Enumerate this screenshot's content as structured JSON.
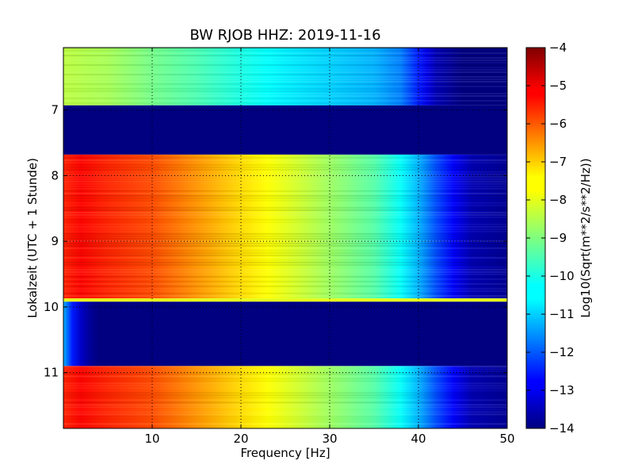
{
  "chart_data": {
    "type": "heatmap",
    "title": "BW RJOB HHZ: 2019-11-16",
    "xlabel": "Frequency [Hz]",
    "ylabel": "Lokalzeit (UTC + 1 Stunde)",
    "xlim": [
      0,
      50
    ],
    "ylim": [
      11.85,
      6.05
    ],
    "x_ticks": [
      10,
      20,
      30,
      40,
      50
    ],
    "y_ticks": [
      7,
      8,
      9,
      10,
      11
    ],
    "y_axis_inverted": true,
    "grid": true,
    "colormap": "jet",
    "colorbar": {
      "label": "Log10(Sqrt(m**2/s**2/Hz))",
      "range": [
        -14,
        -4
      ],
      "ticks": [
        -4,
        -5,
        -6,
        -7,
        -8,
        -9,
        -10,
        -11,
        -12,
        -13,
        -14
      ]
    },
    "time_segments": [
      {
        "start": 6.05,
        "end": 6.93,
        "state": "data",
        "profile": [
          [
            0,
            -8.4
          ],
          [
            5,
            -8.6
          ],
          [
            10,
            -9.1
          ],
          [
            15,
            -9.5
          ],
          [
            20,
            -10.0
          ],
          [
            25,
            -10.4
          ],
          [
            30,
            -10.7
          ],
          [
            35,
            -11.0
          ],
          [
            38,
            -11.5
          ],
          [
            40,
            -12.5
          ],
          [
            42,
            -13.5
          ],
          [
            45,
            -14
          ],
          [
            50,
            -14
          ]
        ]
      },
      {
        "start": 6.93,
        "end": 7.68,
        "state": "no_data",
        "value": -14
      },
      {
        "start": 7.68,
        "end": 9.87,
        "state": "data",
        "profile": [
          [
            0,
            -5.6
          ],
          [
            2,
            -5.3
          ],
          [
            5,
            -5.6
          ],
          [
            10,
            -6.0
          ],
          [
            15,
            -6.7
          ],
          [
            20,
            -7.4
          ],
          [
            25,
            -8.0
          ],
          [
            30,
            -8.7
          ],
          [
            35,
            -9.4
          ],
          [
            38,
            -10.2
          ],
          [
            40,
            -11.0
          ],
          [
            42,
            -12.0
          ],
          [
            44,
            -12.8
          ],
          [
            46,
            -13.5
          ],
          [
            50,
            -13.8
          ]
        ]
      },
      {
        "start": 9.87,
        "end": 9.92,
        "state": "transition_line",
        "value": -8.0
      },
      {
        "start": 9.92,
        "end": 10.9,
        "state": "low",
        "profile": [
          [
            0,
            -11.0
          ],
          [
            1,
            -12.5
          ],
          [
            2,
            -13.3
          ],
          [
            3.5,
            -14
          ],
          [
            50,
            -14
          ]
        ]
      },
      {
        "start": 10.9,
        "end": 11.85,
        "state": "data",
        "profile": [
          [
            0,
            -5.6
          ],
          [
            2,
            -5.3
          ],
          [
            5,
            -5.6
          ],
          [
            10,
            -6.0
          ],
          [
            15,
            -6.7
          ],
          [
            20,
            -7.4
          ],
          [
            25,
            -8.0
          ],
          [
            30,
            -8.7
          ],
          [
            35,
            -9.4
          ],
          [
            38,
            -10.2
          ],
          [
            40,
            -11.0
          ],
          [
            42,
            -12.0
          ],
          [
            44,
            -12.8
          ],
          [
            46,
            -13.5
          ],
          [
            50,
            -13.8
          ]
        ]
      }
    ]
  }
}
